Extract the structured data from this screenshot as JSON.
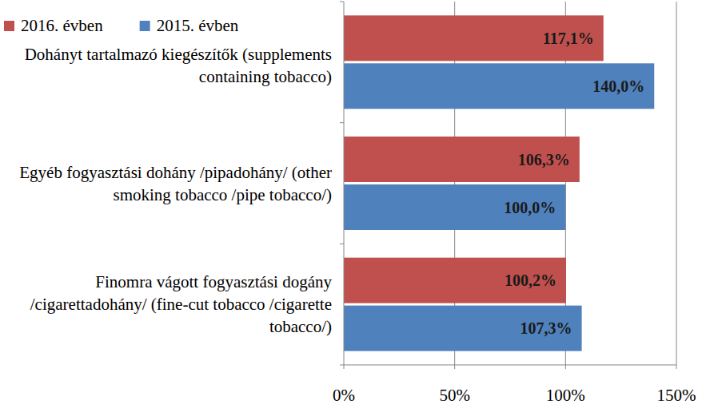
{
  "chart_data": {
    "type": "bar",
    "orientation": "horizontal",
    "categories": [
      "Dohányt tartalmazó kiegészítők (supplements containing tobacco)",
      "Egyéb fogyasztási dohány /pipadohány/ (other smoking tobacco /pipe tobacco/)",
      "Finomra vágott fogyasztási dogány /cigarettadohány/ (fine-cut tobacco /cigarette tobacco/)"
    ],
    "series": [
      {
        "name": "2016. évben",
        "color": "#c0504d",
        "values": [
          117.1,
          106.3,
          100.2
        ],
        "value_labels": [
          "117,1%",
          "106,3%",
          "100,2%"
        ]
      },
      {
        "name": "2015. évben",
        "color": "#4f81bd",
        "values": [
          140.0,
          100.0,
          107.3
        ],
        "value_labels": [
          "140,0%",
          "100,0%",
          "107,3%"
        ]
      }
    ],
    "xlim": [
      0,
      150
    ],
    "xticks": [
      {
        "value": 0,
        "label": "0%"
      },
      {
        "value": 50,
        "label": "50%"
      },
      {
        "value": 100,
        "label": "100%"
      },
      {
        "value": 150,
        "label": "150%"
      }
    ],
    "grid": true,
    "legend": "top-left",
    "data_labels": true
  }
}
